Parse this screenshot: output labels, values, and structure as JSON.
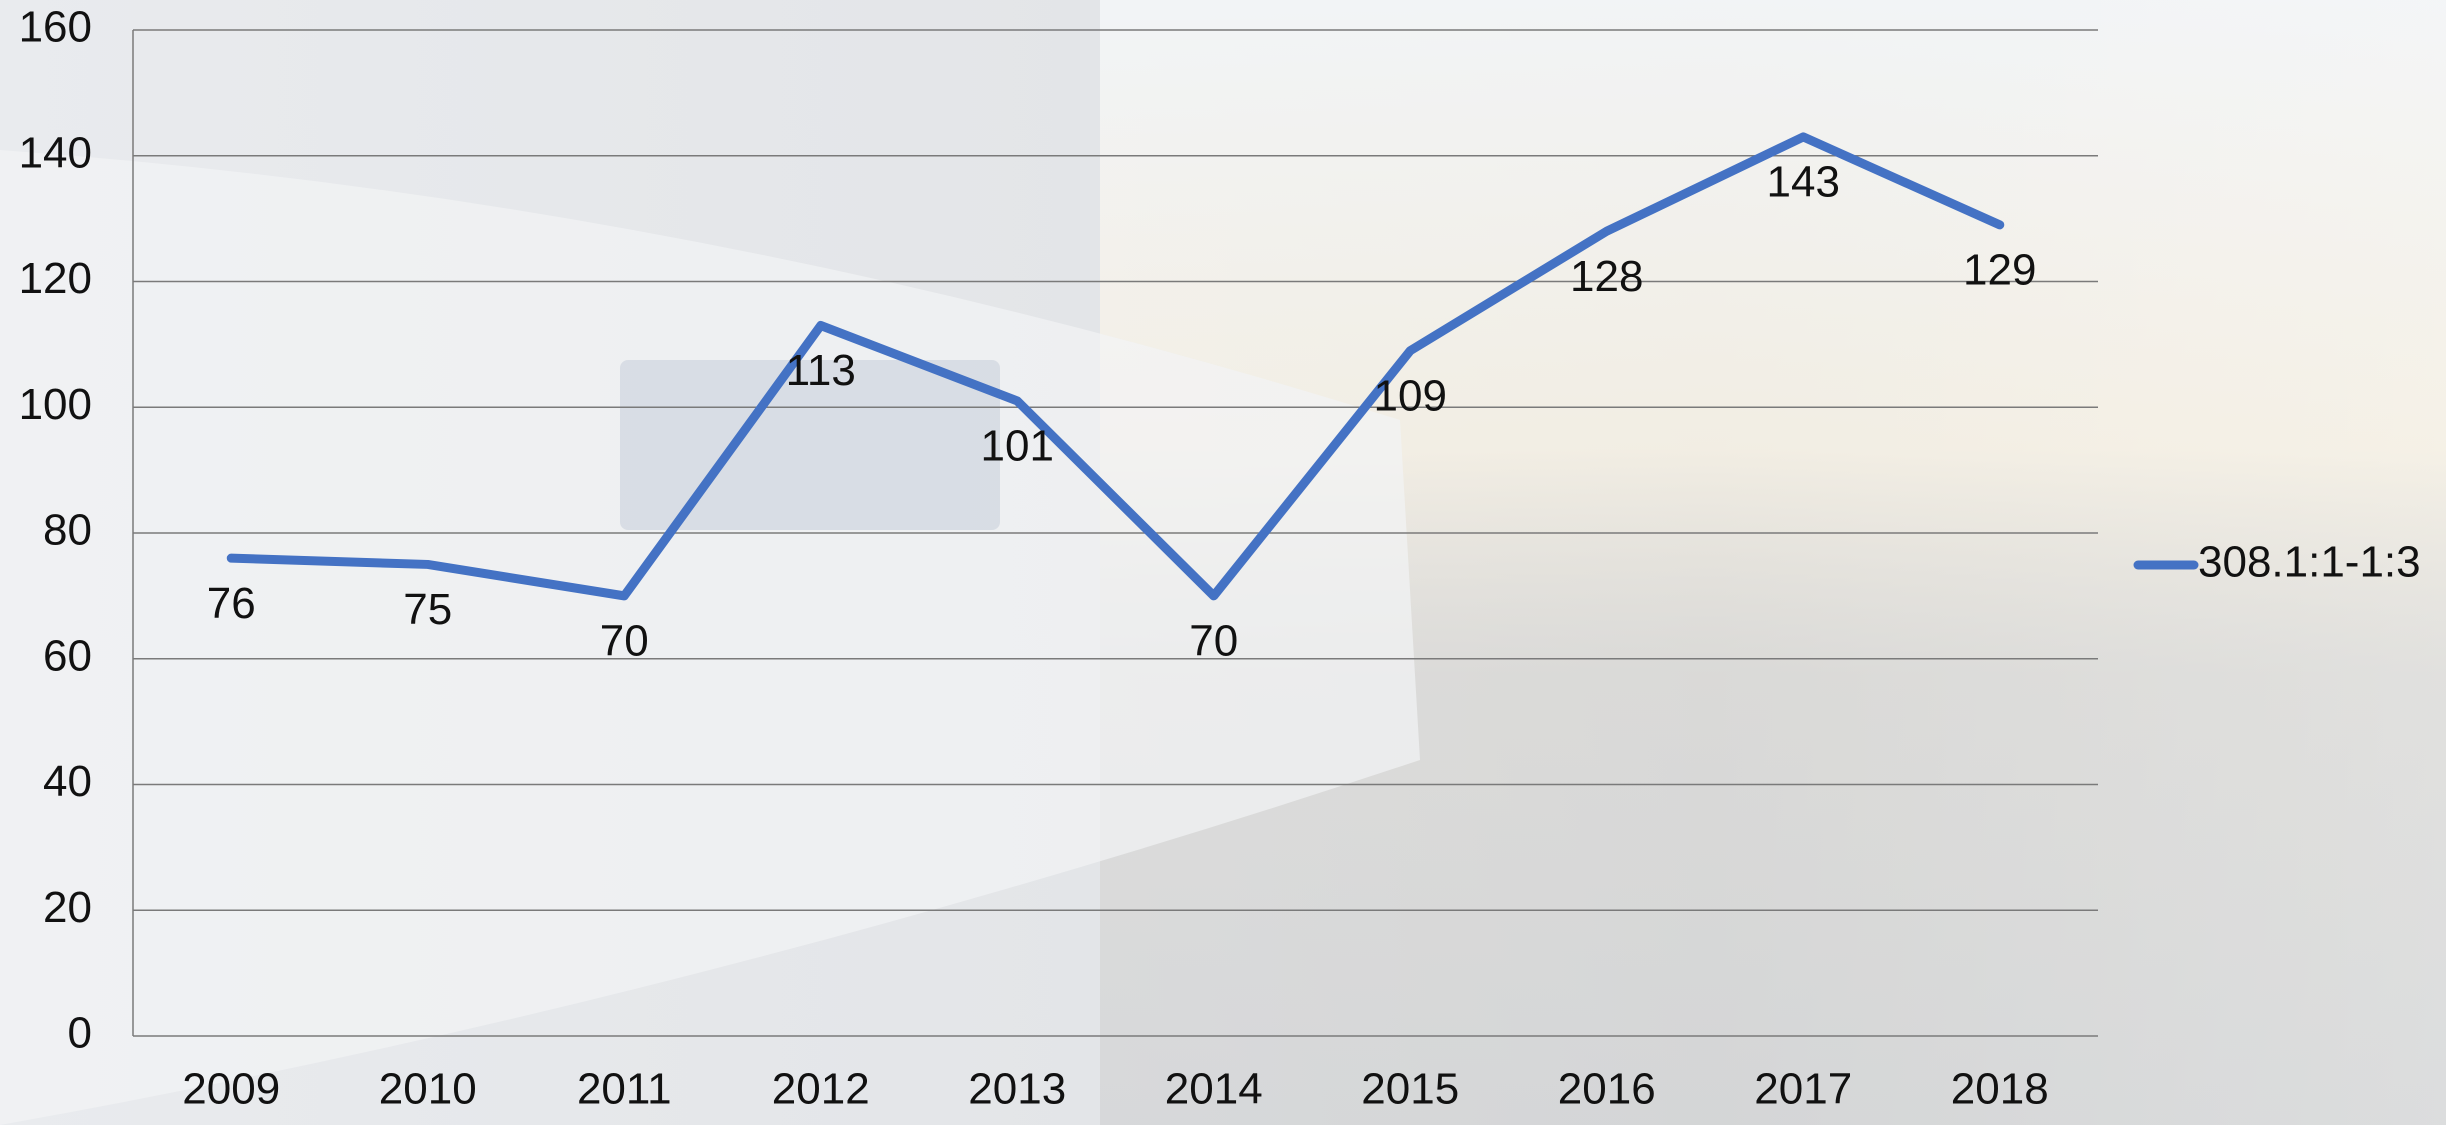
{
  "chart_data": {
    "type": "line",
    "categories": [
      "2009",
      "2010",
      "2011",
      "2012",
      "2013",
      "2014",
      "2015",
      "2016",
      "2017",
      "2018"
    ],
    "series": [
      {
        "name": "308.1:1-1:3",
        "color": "#4472c4",
        "values": [
          76,
          75,
          70,
          113,
          101,
          70,
          109,
          128,
          143,
          129
        ]
      }
    ],
    "ylim": [
      0,
      160
    ],
    "yticks": [
      0,
      20,
      40,
      60,
      80,
      100,
      120,
      140,
      160
    ],
    "grid": true,
    "legend": "right"
  }
}
